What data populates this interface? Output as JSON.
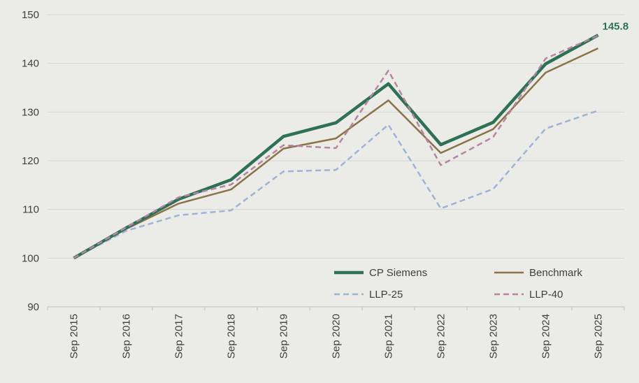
{
  "chart_data": {
    "type": "line",
    "categories": [
      "Sep 2015",
      "Sep 2016",
      "Sep 2017",
      "Sep 2018",
      "Sep 2019",
      "Sep 2020",
      "Sep 2021",
      "Sep 2022",
      "Sep 2023",
      "Sep 2024",
      "Sep 2025"
    ],
    "ylim": [
      90,
      150
    ],
    "yticks": [
      90,
      100,
      110,
      120,
      130,
      140,
      150
    ],
    "grid": "horizontal",
    "legend": "bottom-right",
    "series": [
      {
        "name": "CP Siemens",
        "color": "#2e7157",
        "style": "solid-thick",
        "values": [
          100,
          106.2,
          112.1,
          116.1,
          125.0,
          127.8,
          135.8,
          123.3,
          127.9,
          139.9,
          145.8
        ]
      },
      {
        "name": "Benchmark",
        "color": "#8a7346",
        "style": "solid",
        "values": [
          100,
          106.0,
          111.2,
          114.1,
          122.5,
          124.6,
          132.4,
          121.6,
          126.5,
          138.1,
          143.1
        ]
      },
      {
        "name": "LLP-25",
        "color": "#9fb3d6",
        "style": "dashed",
        "values": [
          100,
          105.6,
          108.8,
          109.8,
          117.8,
          118.1,
          127.4,
          110.2,
          114.2,
          126.6,
          130.3
        ]
      },
      {
        "name": "LLP-40",
        "color": "#b784a4",
        "style": "dashed",
        "values": [
          100,
          106.3,
          112.5,
          115.1,
          123.2,
          122.6,
          138.5,
          119.1,
          124.9,
          141.0,
          145.7
        ]
      }
    ],
    "annotations": [
      {
        "text": "145.8",
        "series": "CP Siemens",
        "category": "Sep 2025"
      }
    ]
  }
}
